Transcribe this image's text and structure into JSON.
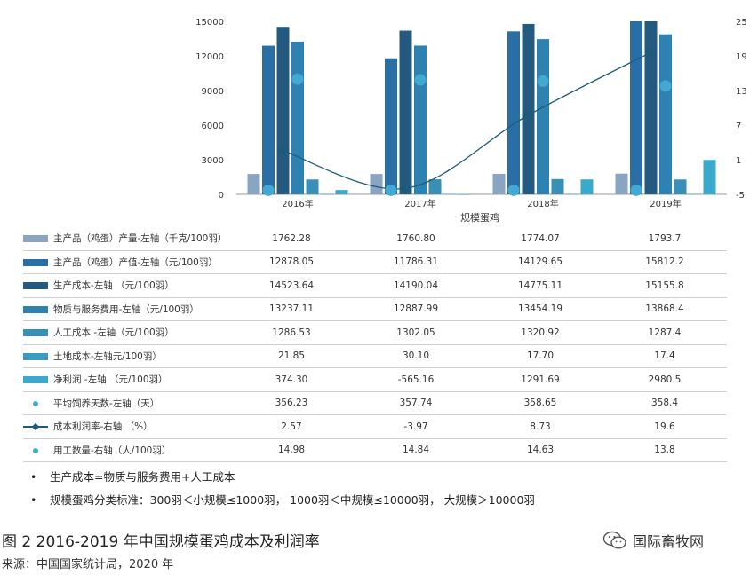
{
  "chart_data": {
    "type": "bar",
    "categories": [
      "2016年",
      "2017年",
      "2018年",
      "2019年"
    ],
    "xlabel": "规模蛋鸡",
    "y_left_ticks": [
      "0",
      "3000",
      "6000",
      "9000",
      "12000",
      "15000"
    ],
    "y_left_range": [
      0,
      15000
    ],
    "y_right_ticks": [
      "-5",
      "1",
      "7",
      "13",
      "19",
      "25"
    ],
    "y_right_range": [
      -5,
      25
    ],
    "series": [
      {
        "name": "主产品（鸡蛋）产量-左轴（千克/100羽）",
        "kind": "bar",
        "axis": "left",
        "color": "#8aa5c1",
        "values": [
          1762.28,
          1760.8,
          1774.07,
          1793.7
        ],
        "labels": [
          "1762.28",
          "1760.80",
          "1774.07",
          "1793.7"
        ]
      },
      {
        "name": "主产品（鸡蛋）产值-左轴（元/100羽）",
        "kind": "bar",
        "axis": "left",
        "color": "#2a6ea6",
        "values": [
          12878.05,
          11786.31,
          14129.65,
          15812.2
        ],
        "labels": [
          "12878.05",
          "11786.31",
          "14129.65",
          "15812.2"
        ]
      },
      {
        "name": "生产成本-左轴  （元/100羽）",
        "kind": "bar",
        "axis": "left",
        "color": "#245a80",
        "values": [
          14523.64,
          14190.04,
          14775.11,
          15155.8
        ],
        "labels": [
          "14523.64",
          "14190.04",
          "14775.11",
          "15155.8"
        ]
      },
      {
        "name": "物质与服务费用-左轴（元/100羽）",
        "kind": "bar",
        "axis": "left",
        "color": "#2e82b2",
        "values": [
          13237.11,
          12887.99,
          13454.19,
          13868.4
        ],
        "labels": [
          "13237.11",
          "12887.99",
          "13454.19",
          "13868.4"
        ]
      },
      {
        "name": "人工成本 -左轴（元/100羽）",
        "kind": "bar",
        "axis": "left",
        "color": "#3a8fb5",
        "values": [
          1286.53,
          1302.05,
          1320.92,
          1287.4
        ],
        "labels": [
          "1286.53",
          "1302.05",
          "1320.92",
          "1287.4"
        ]
      },
      {
        "name": "土地成本-左轴元/100羽）",
        "kind": "bar",
        "axis": "left",
        "color": "#3c9cc0",
        "values": [
          21.85,
          30.1,
          17.7,
          17.4
        ],
        "labels": [
          "21.85",
          "30.10",
          "17.70",
          "17.4"
        ]
      },
      {
        "name": "净利润 -左轴  （元/100羽）",
        "kind": "bar",
        "axis": "left",
        "color": "#3aa9cc",
        "values": [
          374.3,
          -565.16,
          1291.69,
          2980.5
        ],
        "labels": [
          "374.30",
          "-565.16",
          "1291.69",
          "2980.5"
        ]
      },
      {
        "name": "平均饲养天数-左轴（天）",
        "kind": "dot",
        "axis": "left",
        "color": "#41a9d2",
        "values": [
          356.23,
          357.74,
          358.65,
          358.4
        ],
        "labels": [
          "356.23",
          "357.74",
          "358.65",
          "358.4"
        ]
      },
      {
        "name": "成本利润率-右轴  （%）",
        "kind": "line",
        "axis": "right",
        "color": "#1e5b7a",
        "values": [
          2.57,
          -3.97,
          8.73,
          19.6
        ],
        "labels": [
          "2.57",
          "-3.97",
          "8.73",
          "19.6"
        ]
      },
      {
        "name": "用工数量-右轴（人/100羽）",
        "kind": "dot",
        "axis": "right",
        "color": "#41a9d2",
        "values": [
          14.98,
          14.84,
          14.63,
          13.8
        ],
        "labels": [
          "14.98",
          "14.84",
          "14.63",
          "13.8"
        ]
      }
    ]
  },
  "notes": [
    "生产成本=物质与服务费用+人工成本",
    "规模蛋鸡分类标准：300羽＜小规模≤1000羽，  1000羽＜中规模≤10000羽，  大规模＞10000羽"
  ],
  "note_bullet": "•",
  "caption": "图 2 2016-2019 年中国规模蛋鸡成本及利润率",
  "source": "来源：中国国家统计局，2020 年",
  "brand": "国际畜牧网"
}
